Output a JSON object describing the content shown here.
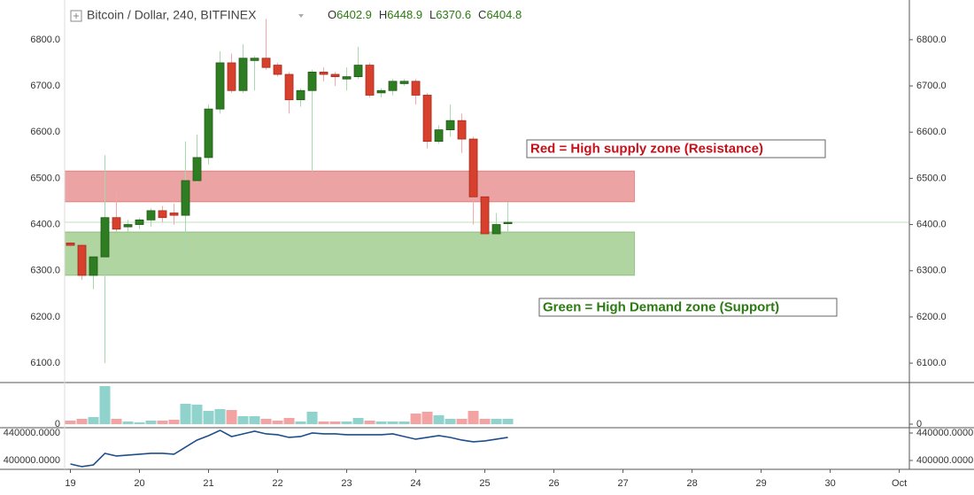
{
  "chart_data": {
    "type": "candlestick",
    "title": "Bitcoin / Dollar, 240, BITFINEX",
    "header_labels": [
      "O",
      "H",
      "L",
      "C"
    ],
    "x": [
      0,
      4,
      8,
      12,
      16,
      20,
      24,
      28,
      32,
      36,
      40,
      44,
      48,
      52,
      56,
      60,
      64,
      68,
      72,
      76,
      80,
      84,
      88,
      92,
      96,
      100,
      104,
      108,
      112,
      116,
      120,
      124,
      128,
      132,
      136,
      140,
      144,
      148,
      152
    ],
    "open": [
      6360,
      6355,
      6290,
      6330,
      6415,
      6395,
      6400,
      6410,
      6430,
      6425,
      6420,
      6495,
      6545,
      6650,
      6750,
      6690,
      6755,
      6760,
      6745,
      6725,
      6670,
      6690,
      6730,
      6725,
      6715,
      6720,
      6745,
      6685,
      6690,
      6705,
      6710,
      6680,
      6580,
      6605,
      6625,
      6585,
      6460,
      6380,
      6402.9
    ],
    "high": [
      6365,
      6360,
      6335,
      6550,
      6470,
      6410,
      6415,
      6435,
      6440,
      6445,
      6580,
      6595,
      6660,
      6775,
      6770,
      6790,
      6765,
      6845,
      6750,
      6730,
      6695,
      6735,
      6740,
      6730,
      6740,
      6785,
      6750,
      6695,
      6715,
      6715,
      6715,
      6685,
      6615,
      6660,
      6640,
      6590,
      6465,
      6425,
      6448.9
    ],
    "low": [
      6350,
      6280,
      6260,
      6100,
      6385,
      6385,
      6390,
      6395,
      6405,
      6400,
      6335,
      6490,
      6530,
      6640,
      6685,
      6685,
      6690,
      6735,
      6720,
      6640,
      6655,
      6515,
      6710,
      6700,
      6690,
      6715,
      6675,
      6675,
      6680,
      6700,
      6660,
      6565,
      6575,
      6590,
      6555,
      6400,
      6378,
      6378,
      6370.6
    ],
    "close": [
      6355,
      6290,
      6330,
      6415,
      6390,
      6400,
      6410,
      6430,
      6415,
      6420,
      6495,
      6545,
      6650,
      6750,
      6690,
      6760,
      6760,
      6740,
      6725,
      6670,
      6690,
      6730,
      6725,
      6720,
      6720,
      6745,
      6680,
      6690,
      6710,
      6710,
      6680,
      6580,
      6605,
      6625,
      6585,
      6460,
      6380,
      6400,
      6404.8
    ],
    "up_color": "#2f7d22",
    "down_color": "#d6402c",
    "xlim": [
      -2,
      291.5
    ],
    "xticks": [
      {
        "value": 0,
        "label": "19"
      },
      {
        "value": 24,
        "label": "20"
      },
      {
        "value": 48,
        "label": "21"
      },
      {
        "value": 72,
        "label": "22"
      },
      {
        "value": 96,
        "label": "23"
      },
      {
        "value": 120,
        "label": "24"
      },
      {
        "value": 144,
        "label": "25"
      },
      {
        "value": 168,
        "label": "26"
      },
      {
        "value": 192,
        "label": "27"
      },
      {
        "value": 216,
        "label": "28"
      },
      {
        "value": 240,
        "label": "29"
      },
      {
        "value": 264,
        "label": "30"
      },
      {
        "value": 288,
        "label": "Oct"
      }
    ],
    "ylim": [
      6058,
      6886
    ],
    "yticks": [
      {
        "value": 6100,
        "label": "6100.0"
      },
      {
        "value": 6200,
        "label": "6200.0"
      },
      {
        "value": 6300,
        "label": "6300.0"
      },
      {
        "value": 6400,
        "label": "6400.0"
      },
      {
        "value": 6500,
        "label": "6500.0"
      },
      {
        "value": 6600,
        "label": "6600.0"
      },
      {
        "value": 6700,
        "label": "6700.0"
      },
      {
        "value": 6800,
        "label": "6800.0"
      }
    ],
    "zones": [
      {
        "low": 6449,
        "high": 6516,
        "x_range": [
          -2,
          196
        ],
        "color": "#eba3a3",
        "label": "Red = High supply zone (Resistance)",
        "label_color": "#c8101a"
      },
      {
        "low": 6290,
        "high": 6384,
        "x_range": [
          -2,
          196
        ],
        "color": "#b0d5a0",
        "label": "Green = High Demand zone (Support)",
        "label_color": "#2c7a12"
      }
    ],
    "volume": {
      "values": [
        4,
        6,
        8,
        43,
        6,
        3,
        2,
        4,
        4,
        5,
        23,
        22,
        15,
        17,
        16,
        9,
        9,
        6,
        4,
        7,
        3,
        14,
        3,
        3,
        3,
        7,
        4,
        3,
        3,
        3,
        12,
        14,
        10,
        6,
        6,
        15,
        6,
        6,
        6
      ],
      "up_color": "#8fd3cc",
      "down_color": "#f4a3a3",
      "ylim": [
        -4,
        47
      ],
      "yticks": [
        0
      ]
    },
    "indicator": {
      "values": [
        394850,
        391000,
        393560,
        410330,
        406460,
        407750,
        409040,
        410330,
        410330,
        409040,
        419360,
        429680,
        436130,
        443870,
        434840,
        438710,
        442580,
        438710,
        437420,
        433550,
        434840,
        440000,
        438710,
        438710,
        437420,
        437420,
        437420,
        437420,
        438710,
        434840,
        430970,
        433550,
        436130,
        433550,
        429680,
        427100,
        428390,
        430970,
        433550
      ],
      "color": "#1f4e8c",
      "ylim": [
        387100,
        447700
      ],
      "yticks": [
        {
          "value": 440000,
          "label": "440000.0000"
        },
        {
          "value": 400000,
          "label": "400000.0000"
        }
      ]
    }
  }
}
